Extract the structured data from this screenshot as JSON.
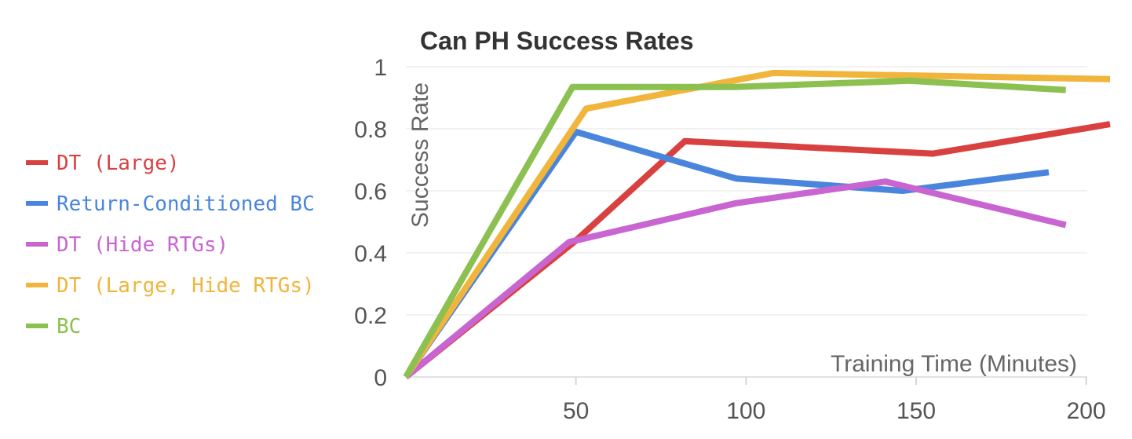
{
  "chart_data": {
    "type": "line",
    "title": "Can PH Success Rates",
    "xlabel": "Training Time (Minutes)",
    "ylabel": "Success Rate",
    "xlim": [
      0,
      207
    ],
    "ylim": [
      0,
      1
    ],
    "xticks": [
      50,
      100,
      150,
      200
    ],
    "xtick_labels": [
      "50",
      "100",
      "150",
      "200"
    ],
    "yticks": [
      0,
      0.2,
      0.4,
      0.6,
      0.8,
      1
    ],
    "ytick_labels": [
      "0",
      "0.2",
      "0.4",
      "0.6",
      "0.8",
      "1"
    ],
    "grid": "horizontal",
    "legend_position": "left",
    "series": [
      {
        "name": "DT (Large)",
        "color": "#d94040",
        "x": [
          0,
          50,
          82,
          155,
          207
        ],
        "y": [
          0,
          0.44,
          0.76,
          0.72,
          0.815
        ]
      },
      {
        "name": "Return-Conditioned BC",
        "color": "#4a85dd",
        "x": [
          0,
          50,
          97,
          146,
          189
        ],
        "y": [
          0,
          0.79,
          0.64,
          0.6,
          0.66
        ]
      },
      {
        "name": "DT (Hide RTGs)",
        "color": "#c865d0",
        "x": [
          0,
          48,
          97,
          141,
          194
        ],
        "y": [
          0,
          0.435,
          0.56,
          0.63,
          0.49
        ]
      },
      {
        "name": "DT (Large, Hide RTGs)",
        "color": "#f0b53a",
        "x": [
          0,
          53,
          108,
          207
        ],
        "y": [
          0,
          0.865,
          0.98,
          0.96
        ]
      },
      {
        "name": "BC",
        "color": "#8cc050",
        "x": [
          0,
          49,
          97,
          148,
          194
        ],
        "y": [
          0,
          0.935,
          0.935,
          0.955,
          0.925
        ]
      }
    ]
  }
}
